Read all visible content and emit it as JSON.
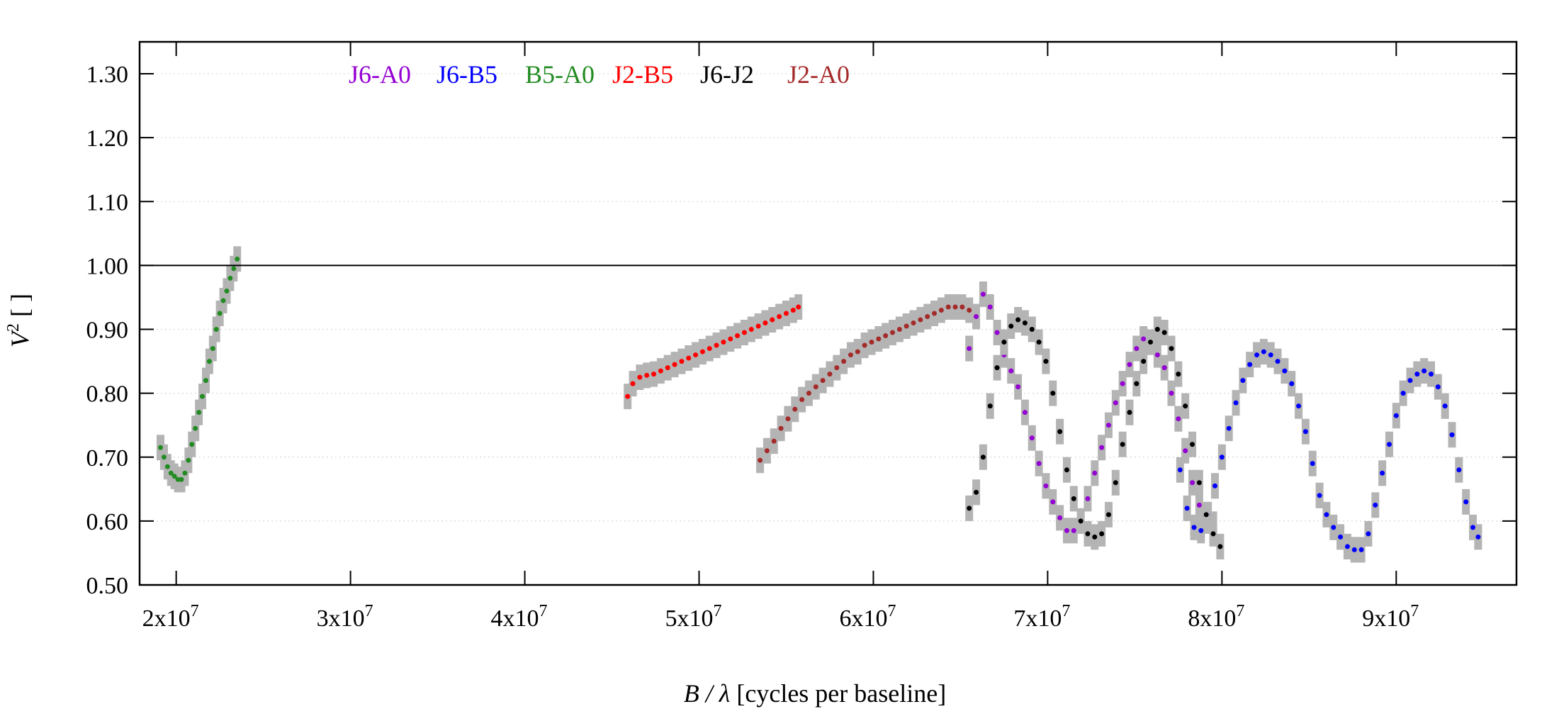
{
  "chart_data": {
    "type": "scatter",
    "title": "",
    "xlabel": "B / λ [cycles per baseline]",
    "ylabel": "V² [ ]",
    "xlim": [
      17900000,
      96900000
    ],
    "ylim": [
      0.5,
      1.35
    ],
    "x_ticks": [
      {
        "value": 20000000,
        "mant": "2x10",
        "exp": "7"
      },
      {
        "value": 30000000,
        "mant": "3x10",
        "exp": "7"
      },
      {
        "value": 40000000,
        "mant": "4x10",
        "exp": "7"
      },
      {
        "value": 50000000,
        "mant": "5x10",
        "exp": "7"
      },
      {
        "value": 60000000,
        "mant": "6x10",
        "exp": "7"
      },
      {
        "value": 70000000,
        "mant": "7x10",
        "exp": "7"
      },
      {
        "value": 80000000,
        "mant": "8x10",
        "exp": "7"
      },
      {
        "value": 90000000,
        "mant": "9x10",
        "exp": "7"
      }
    ],
    "y_ticks": [
      {
        "value": 0.5,
        "label": "0.50"
      },
      {
        "value": 0.6,
        "label": "0.60"
      },
      {
        "value": 0.7,
        "label": "0.70"
      },
      {
        "value": 0.8,
        "label": "0.80"
      },
      {
        "value": 0.9,
        "label": "0.90"
      },
      {
        "value": 1.0,
        "label": "1.00"
      },
      {
        "value": 1.1,
        "label": "1.10"
      },
      {
        "value": 1.2,
        "label": "1.20"
      },
      {
        "value": 1.3,
        "label": "1.30"
      }
    ],
    "reference_line": 1.0,
    "grid": "horizontal dotted",
    "legend_position": "top-left, horizontal",
    "error_bar_color": "#b4b4b4",
    "series": [
      {
        "name": "J6-A0",
        "color": "#9400d3",
        "points": [
          [
            65500000,
            0.87
          ],
          [
            65900000,
            0.92
          ],
          [
            66300000,
            0.955
          ],
          [
            66700000,
            0.935
          ],
          [
            67100000,
            0.895
          ],
          [
            67500000,
            0.86
          ],
          [
            67900000,
            0.835
          ],
          [
            68300000,
            0.81
          ],
          [
            68700000,
            0.77
          ],
          [
            69100000,
            0.73
          ],
          [
            69500000,
            0.69
          ],
          [
            69900000,
            0.655
          ],
          [
            70300000,
            0.63
          ],
          [
            70700000,
            0.605
          ],
          [
            71100000,
            0.585
          ],
          [
            71500000,
            0.585
          ],
          [
            71900000,
            0.6
          ],
          [
            72300000,
            0.635
          ],
          [
            72700000,
            0.675
          ],
          [
            73100000,
            0.715
          ],
          [
            73500000,
            0.75
          ],
          [
            73900000,
            0.785
          ],
          [
            74300000,
            0.815
          ],
          [
            74700000,
            0.845
          ],
          [
            75100000,
            0.87
          ],
          [
            75500000,
            0.885
          ],
          [
            75900000,
            0.88
          ],
          [
            76300000,
            0.86
          ],
          [
            76700000,
            0.84
          ],
          [
            77100000,
            0.8
          ],
          [
            77500000,
            0.76
          ],
          [
            77900000,
            0.71
          ],
          [
            78300000,
            0.66
          ],
          [
            78700000,
            0.625
          ],
          [
            79100000,
            0.6
          ],
          [
            79500000,
            0.595
          ]
        ]
      },
      {
        "name": "J6-B5",
        "color": "#0000ff",
        "points": [
          [
            77600000,
            0.68
          ],
          [
            78000000,
            0.62
          ],
          [
            78400000,
            0.59
          ],
          [
            78800000,
            0.585
          ],
          [
            79200000,
            0.61
          ],
          [
            79600000,
            0.655
          ],
          [
            80000000,
            0.7
          ],
          [
            80400000,
            0.745
          ],
          [
            80800000,
            0.785
          ],
          [
            81200000,
            0.82
          ],
          [
            81600000,
            0.845
          ],
          [
            82000000,
            0.86
          ],
          [
            82400000,
            0.865
          ],
          [
            82800000,
            0.86
          ],
          [
            83200000,
            0.85
          ],
          [
            83600000,
            0.835
          ],
          [
            84000000,
            0.815
          ],
          [
            84400000,
            0.78
          ],
          [
            84800000,
            0.74
          ],
          [
            85200000,
            0.69
          ],
          [
            85600000,
            0.64
          ],
          [
            86000000,
            0.61
          ],
          [
            86400000,
            0.59
          ],
          [
            86800000,
            0.575
          ],
          [
            87200000,
            0.56
          ],
          [
            87600000,
            0.555
          ],
          [
            88000000,
            0.555
          ],
          [
            88400000,
            0.58
          ],
          [
            88800000,
            0.625
          ],
          [
            89200000,
            0.675
          ],
          [
            89600000,
            0.72
          ],
          [
            90000000,
            0.765
          ],
          [
            90400000,
            0.8
          ],
          [
            90800000,
            0.82
          ],
          [
            91200000,
            0.83
          ],
          [
            91600000,
            0.835
          ],
          [
            92000000,
            0.83
          ],
          [
            92400000,
            0.81
          ],
          [
            92800000,
            0.78
          ],
          [
            93200000,
            0.735
          ],
          [
            93600000,
            0.68
          ],
          [
            94000000,
            0.63
          ],
          [
            94400000,
            0.59
          ],
          [
            94700000,
            0.575
          ]
        ]
      },
      {
        "name": "B5-A0",
        "color": "#228b22",
        "points": [
          [
            19100000,
            0.715
          ],
          [
            19300000,
            0.7
          ],
          [
            19500000,
            0.685
          ],
          [
            19700000,
            0.675
          ],
          [
            19900000,
            0.67
          ],
          [
            20100000,
            0.665
          ],
          [
            20300000,
            0.665
          ],
          [
            20500000,
            0.675
          ],
          [
            20700000,
            0.695
          ],
          [
            20900000,
            0.72
          ],
          [
            21100000,
            0.745
          ],
          [
            21300000,
            0.77
          ],
          [
            21500000,
            0.795
          ],
          [
            21700000,
            0.82
          ],
          [
            21900000,
            0.85
          ],
          [
            22100000,
            0.87
          ],
          [
            22300000,
            0.9
          ],
          [
            22500000,
            0.925
          ],
          [
            22700000,
            0.945
          ],
          [
            22900000,
            0.96
          ],
          [
            23100000,
            0.98
          ],
          [
            23300000,
            0.995
          ],
          [
            23500000,
            1.01
          ]
        ]
      },
      {
        "name": "J2-B5",
        "color": "#ff0000",
        "points": [
          [
            45900000,
            0.795
          ],
          [
            46200000,
            0.815
          ],
          [
            46600000,
            0.825
          ],
          [
            47000000,
            0.828
          ],
          [
            47400000,
            0.83
          ],
          [
            47800000,
            0.835
          ],
          [
            48200000,
            0.84
          ],
          [
            48600000,
            0.845
          ],
          [
            49000000,
            0.85
          ],
          [
            49400000,
            0.855
          ],
          [
            49800000,
            0.86
          ],
          [
            50200000,
            0.865
          ],
          [
            50600000,
            0.87
          ],
          [
            51000000,
            0.875
          ],
          [
            51400000,
            0.88
          ],
          [
            51800000,
            0.885
          ],
          [
            52200000,
            0.89
          ],
          [
            52600000,
            0.895
          ],
          [
            53000000,
            0.9
          ],
          [
            53400000,
            0.905
          ],
          [
            53800000,
            0.91
          ],
          [
            54200000,
            0.915
          ],
          [
            54600000,
            0.92
          ],
          [
            55000000,
            0.925
          ],
          [
            55400000,
            0.93
          ],
          [
            55700000,
            0.935
          ]
        ]
      },
      {
        "name": "J6-J2",
        "color": "#000000",
        "points": [
          [
            65500000,
            0.62
          ],
          [
            65900000,
            0.645
          ],
          [
            66300000,
            0.7
          ],
          [
            66700000,
            0.78
          ],
          [
            67100000,
            0.84
          ],
          [
            67500000,
            0.88
          ],
          [
            67900000,
            0.905
          ],
          [
            68300000,
            0.915
          ],
          [
            68700000,
            0.91
          ],
          [
            69100000,
            0.9
          ],
          [
            69500000,
            0.88
          ],
          [
            69900000,
            0.85
          ],
          [
            70300000,
            0.8
          ],
          [
            70700000,
            0.74
          ],
          [
            71100000,
            0.68
          ],
          [
            71500000,
            0.635
          ],
          [
            71900000,
            0.6
          ],
          [
            72300000,
            0.58
          ],
          [
            72700000,
            0.575
          ],
          [
            73100000,
            0.58
          ],
          [
            73500000,
            0.61
          ],
          [
            73900000,
            0.66
          ],
          [
            74300000,
            0.72
          ],
          [
            74700000,
            0.77
          ],
          [
            75100000,
            0.815
          ],
          [
            75500000,
            0.85
          ],
          [
            75900000,
            0.88
          ],
          [
            76300000,
            0.9
          ],
          [
            76700000,
            0.895
          ],
          [
            77100000,
            0.87
          ],
          [
            77500000,
            0.83
          ],
          [
            77900000,
            0.78
          ],
          [
            78300000,
            0.72
          ],
          [
            78700000,
            0.66
          ],
          [
            79100000,
            0.61
          ],
          [
            79500000,
            0.58
          ],
          [
            79900000,
            0.56
          ]
        ]
      },
      {
        "name": "J2-A0",
        "color": "#a52a2a",
        "points": [
          [
            53500000,
            0.695
          ],
          [
            53900000,
            0.71
          ],
          [
            54300000,
            0.725
          ],
          [
            54700000,
            0.745
          ],
          [
            55100000,
            0.76
          ],
          [
            55500000,
            0.775
          ],
          [
            55900000,
            0.79
          ],
          [
            56300000,
            0.8
          ],
          [
            56700000,
            0.81
          ],
          [
            57100000,
            0.82
          ],
          [
            57500000,
            0.83
          ],
          [
            57900000,
            0.84
          ],
          [
            58300000,
            0.85
          ],
          [
            58700000,
            0.86
          ],
          [
            59100000,
            0.865
          ],
          [
            59500000,
            0.875
          ],
          [
            59900000,
            0.88
          ],
          [
            60300000,
            0.885
          ],
          [
            60700000,
            0.89
          ],
          [
            61100000,
            0.895
          ],
          [
            61500000,
            0.9
          ],
          [
            61900000,
            0.905
          ],
          [
            62300000,
            0.91
          ],
          [
            62700000,
            0.915
          ],
          [
            63100000,
            0.92
          ],
          [
            63500000,
            0.925
          ],
          [
            63900000,
            0.93
          ],
          [
            64300000,
            0.935
          ],
          [
            64700000,
            0.935
          ],
          [
            65100000,
            0.935
          ],
          [
            65500000,
            0.93
          ]
        ]
      }
    ]
  }
}
